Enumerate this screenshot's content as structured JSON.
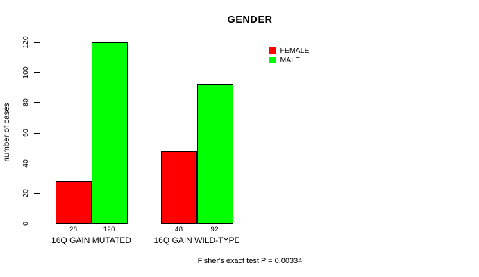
{
  "chart_data": {
    "type": "bar",
    "title": "GENDER",
    "ylabel": "number of cases",
    "xlabel": "",
    "categories": [
      "16Q GAIN MUTATED",
      "16Q GAIN WILD-TYPE"
    ],
    "series": [
      {
        "name": "FEMALE",
        "color": "#ff0000",
        "values": [
          28,
          48
        ]
      },
      {
        "name": "MALE",
        "color": "#00ff00",
        "values": [
          120,
          92
        ]
      }
    ],
    "bar_value_labels": [
      [
        "28",
        "120"
      ],
      [
        "48",
        "92"
      ]
    ],
    "yticks": [
      0,
      20,
      40,
      60,
      80,
      100,
      120
    ],
    "ylim": [
      0,
      120
    ],
    "grid": false,
    "legend_position": "top-right",
    "annotation": "Fisher's exact test P = 0.00334"
  }
}
